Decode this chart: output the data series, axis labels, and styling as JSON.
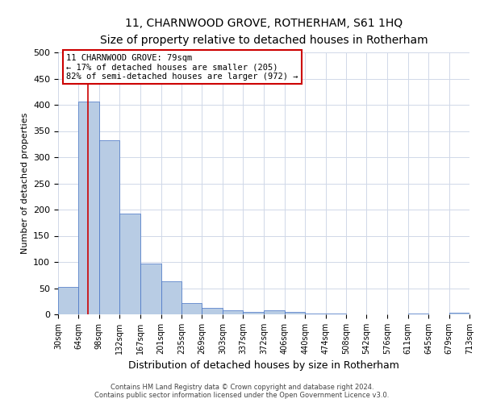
{
  "title": "11, CHARNWOOD GROVE, ROTHERHAM, S61 1HQ",
  "subtitle": "Size of property relative to detached houses in Rotherham",
  "xlabel": "Distribution of detached houses by size in Rotherham",
  "ylabel": "Number of detached properties",
  "bin_edges": [
    30,
    64,
    98,
    132,
    167,
    201,
    235,
    269,
    303,
    337,
    372,
    406,
    440,
    474,
    508,
    542,
    576,
    611,
    645,
    679,
    713
  ],
  "bin_labels": [
    "30sqm",
    "64sqm",
    "98sqm",
    "132sqm",
    "167sqm",
    "201sqm",
    "235sqm",
    "269sqm",
    "303sqm",
    "337sqm",
    "372sqm",
    "406sqm",
    "440sqm",
    "474sqm",
    "508sqm",
    "542sqm",
    "576sqm",
    "611sqm",
    "645sqm",
    "679sqm",
    "713sqm"
  ],
  "bar_heights": [
    52,
    406,
    333,
    193,
    97,
    63,
    22,
    12,
    8,
    4,
    7,
    5,
    2,
    1,
    0,
    0,
    0,
    2,
    0,
    3
  ],
  "bar_color": "#b8cce4",
  "bar_edge_color": "#4472c4",
  "grid_color": "#d0d8e8",
  "background_color": "#ffffff",
  "property_line_x": 79,
  "property_line_color": "#cc0000",
  "ylim": [
    0,
    500
  ],
  "yticks": [
    0,
    50,
    100,
    150,
    200,
    250,
    300,
    350,
    400,
    450,
    500
  ],
  "annotation_title": "11 CHARNWOOD GROVE: 79sqm",
  "annotation_line1": "← 17% of detached houses are smaller (205)",
  "annotation_line2": "82% of semi-detached houses are larger (972) →",
  "annotation_box_color": "#ffffff",
  "annotation_box_edge": "#cc0000",
  "footer_line1": "Contains HM Land Registry data © Crown copyright and database right 2024.",
  "footer_line2": "Contains public sector information licensed under the Open Government Licence v3.0."
}
